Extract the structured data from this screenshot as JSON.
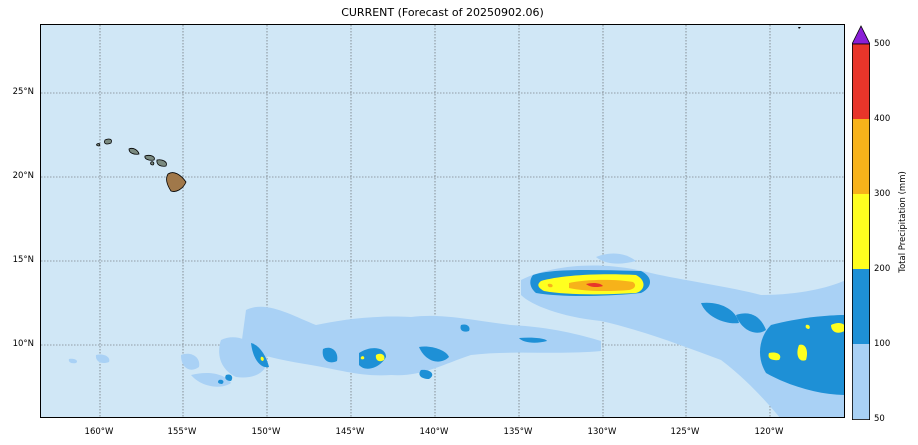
{
  "title": "CURRENT (Forecast of 20250902.06)",
  "map": {
    "ocean_color": "#d0e7f6",
    "lon_ticks": [
      "160°W",
      "155°W",
      "150°W",
      "145°W",
      "140°W",
      "135°W",
      "130°W",
      "125°W",
      "120°W"
    ],
    "lat_ticks": [
      "25°N",
      "20°N",
      "15°N",
      "10°N"
    ],
    "features": [
      "hawaiian-islands",
      "precipitation-field"
    ]
  },
  "colorbar": {
    "title": "Total Precipitation (mm)",
    "levels": [
      "50",
      "100",
      "200",
      "300",
      "400",
      "500"
    ],
    "colors": [
      "#a9d1f5",
      "#1e90d6",
      "#ffff1f",
      "#f7b21a",
      "#e8352a",
      "#8a1fd6"
    ]
  }
}
